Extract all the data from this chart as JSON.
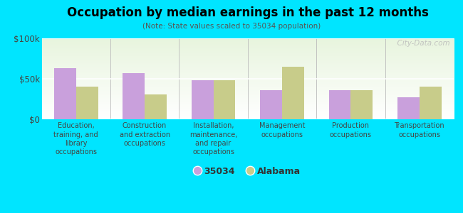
{
  "title": "Occupation by median earnings in the past 12 months",
  "subtitle": "(Note: State values scaled to 35034 population)",
  "categories": [
    "Education,\ntraining, and\nlibrary\noccupations",
    "Construction\nand extraction\noccupations",
    "Installation,\nmaintenance,\nand repair\noccupations",
    "Management\noccupations",
    "Production\noccupations",
    "Transportation\noccupations"
  ],
  "values_35034": [
    63000,
    57000,
    48000,
    36000,
    36000,
    27000
  ],
  "values_alabama": [
    40000,
    31000,
    48000,
    65000,
    36000,
    40000
  ],
  "color_35034": "#c9a0dc",
  "color_alabama": "#c8cc8a",
  "ylim": [
    0,
    100000
  ],
  "yticks": [
    0,
    50000,
    100000
  ],
  "ytick_labels": [
    "$0",
    "$50k",
    "$100k"
  ],
  "background_outer": "#00e5ff",
  "background_inner": "#f0f5e8",
  "legend_label_35034": "35034",
  "legend_label_alabama": "Alabama",
  "bar_width": 0.32,
  "watermark": "  City-Data.com"
}
